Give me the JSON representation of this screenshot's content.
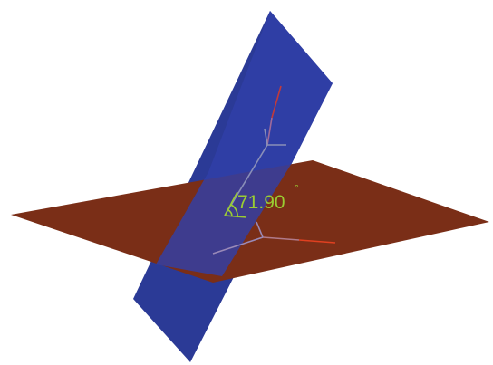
{
  "angle_label": {
    "value": "71.90",
    "unit": "°"
  }
}
